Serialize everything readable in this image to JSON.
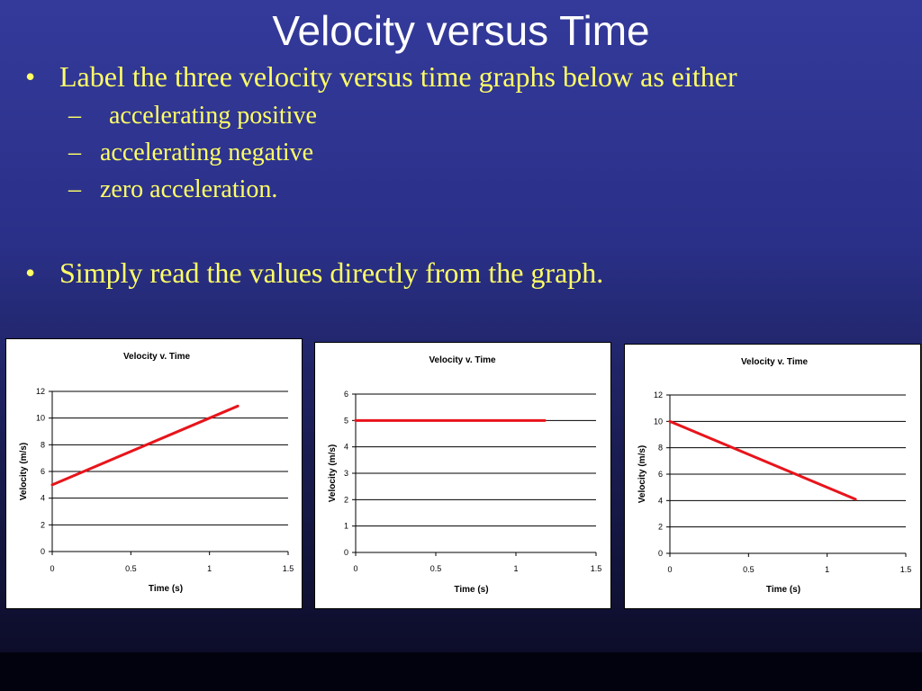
{
  "title": "Velocity versus Time",
  "bullets": [
    {
      "text": "Label the three velocity versus time graphs below as either",
      "subitems": [
        "accelerating positive",
        "accelerating negative",
        "zero acceleration."
      ]
    },
    {
      "text": "Simply read the values directly from the graph."
    }
  ],
  "chart_data": [
    {
      "type": "line",
      "title": "Velocity v. Time",
      "xlabel": "Time (s)",
      "ylabel": "Velocity (m/s)",
      "xlim": [
        0,
        1.5
      ],
      "ylim": [
        0,
        12
      ],
      "xticks": [
        "0",
        "0.5",
        "1",
        "1.5"
      ],
      "yticks": [
        "0",
        "2",
        "4",
        "6",
        "8",
        "10",
        "12"
      ],
      "grid": "horizontal",
      "line_color": "#e8141b",
      "series": [
        {
          "x": [
            0,
            1.18
          ],
          "y": [
            5,
            10.9
          ]
        }
      ]
    },
    {
      "type": "line",
      "title": "Velocity v. Time",
      "xlabel": "Time (s)",
      "ylabel": "Velocity (m/s)",
      "xlim": [
        0,
        1.5
      ],
      "ylim": [
        0,
        6
      ],
      "xticks": [
        "0",
        "0.5",
        "1",
        "1.5"
      ],
      "yticks": [
        "0",
        "1",
        "2",
        "3",
        "4",
        "5",
        "6"
      ],
      "grid": "horizontal",
      "line_color": "#e8141b",
      "series": [
        {
          "x": [
            0,
            1.18
          ],
          "y": [
            5,
            5
          ]
        }
      ]
    },
    {
      "type": "line",
      "title": "Velocity v. Time",
      "xlabel": "Time (s)",
      "ylabel": "Velocity (m/s)",
      "xlim": [
        0,
        1.5
      ],
      "ylim": [
        0,
        12
      ],
      "xticks": [
        "0",
        "0.5",
        "1",
        "1.5"
      ],
      "yticks": [
        "0",
        "2",
        "4",
        "6",
        "8",
        "10",
        "12"
      ],
      "grid": "horizontal",
      "line_color": "#e8141b",
      "series": [
        {
          "x": [
            0,
            1.18
          ],
          "y": [
            10,
            4.1
          ]
        }
      ]
    }
  ]
}
